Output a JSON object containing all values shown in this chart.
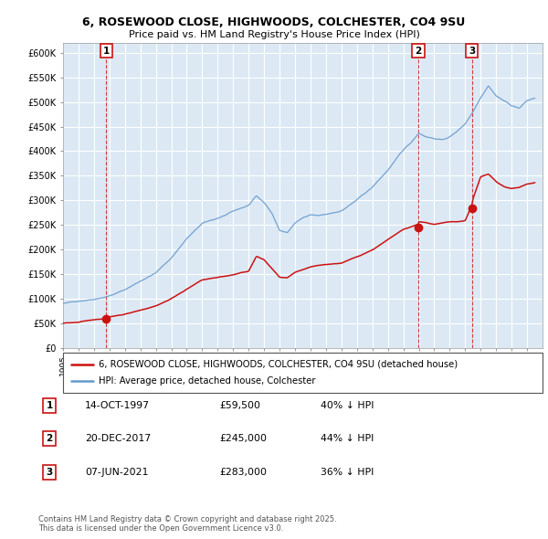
{
  "title_line1": "6, ROSEWOOD CLOSE, HIGHWOODS, COLCHESTER, CO4 9SU",
  "title_line2": "Price paid vs. HM Land Registry's House Price Index (HPI)",
  "ylim": [
    0,
    620000
  ],
  "yticks": [
    0,
    50000,
    100000,
    150000,
    200000,
    250000,
    300000,
    350000,
    400000,
    450000,
    500000,
    550000,
    600000
  ],
  "ytick_labels": [
    "£0",
    "£50K",
    "£100K",
    "£150K",
    "£200K",
    "£250K",
    "£300K",
    "£350K",
    "£400K",
    "£450K",
    "£500K",
    "£550K",
    "£600K"
  ],
  "background_color": "#ffffff",
  "plot_bg_color": "#dce9f5",
  "grid_color": "#ffffff",
  "hpi_color": "#6699cc",
  "price_color": "#cc1111",
  "vline_color": "#cc1111",
  "sale_points": [
    {
      "year": 1997.79,
      "price": 59500,
      "label": "1"
    },
    {
      "year": 2017.97,
      "price": 245000,
      "label": "2"
    },
    {
      "year": 2021.44,
      "price": 283000,
      "label": "3"
    }
  ],
  "legend_entries": [
    {
      "label": "6, ROSEWOOD CLOSE, HIGHWOODS, COLCHESTER, CO4 9SU (detached house)",
      "color": "#cc1111"
    },
    {
      "label": "HPI: Average price, detached house, Colchester",
      "color": "#6699cc"
    }
  ],
  "table_rows": [
    {
      "num": "1",
      "date": "14-OCT-1997",
      "price": "£59,500",
      "hpi": "40% ↓ HPI"
    },
    {
      "num": "2",
      "date": "20-DEC-2017",
      "price": "£245,000",
      "hpi": "44% ↓ HPI"
    },
    {
      "num": "3",
      "date": "07-JUN-2021",
      "price": "£283,000",
      "hpi": "36% ↓ HPI"
    }
  ],
  "footer": "Contains HM Land Registry data © Crown copyright and database right 2025.\nThis data is licensed under the Open Government Licence v3.0.",
  "xmin": 1995,
  "xmax": 2026
}
